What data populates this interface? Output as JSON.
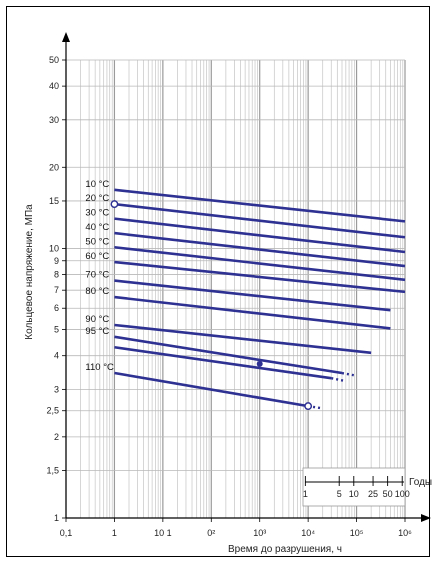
{
  "chart_data": {
    "type": "line",
    "xlabel": "Время до разрушения, ч",
    "ylabel": "Кольцевое напряжение, МПа",
    "x_scale": "log",
    "y_scale": "log",
    "xlim": [
      0.1,
      1000000
    ],
    "ylim": [
      1,
      50
    ],
    "x_ticks": [
      {
        "v": 0.1,
        "label": "0,1"
      },
      {
        "v": 1,
        "label": "1"
      },
      {
        "v": 10,
        "label": "10 1"
      },
      {
        "v": 100,
        "label": "0²"
      },
      {
        "v": 1000,
        "label": "10³"
      },
      {
        "v": 10000,
        "label": "10⁴"
      },
      {
        "v": 100000,
        "label": "10⁵"
      },
      {
        "v": 1000000,
        "label": "10⁶"
      }
    ],
    "y_ticks": [
      {
        "v": 1,
        "label": "1"
      },
      {
        "v": 1.5,
        "label": "1,5"
      },
      {
        "v": 2,
        "label": "2"
      },
      {
        "v": 2.5,
        "label": "2,5"
      },
      {
        "v": 3,
        "label": "3"
      },
      {
        "v": 4,
        "label": "4"
      },
      {
        "v": 5,
        "label": "5"
      },
      {
        "v": 6,
        "label": "6"
      },
      {
        "v": 7,
        "label": "7"
      },
      {
        "v": 8,
        "label": "8"
      },
      {
        "v": 9,
        "label": "9"
      },
      {
        "v": 10,
        "label": "10"
      },
      {
        "v": 15,
        "label": "15"
      },
      {
        "v": 20,
        "label": "20"
      },
      {
        "v": 30,
        "label": "30"
      },
      {
        "v": 40,
        "label": "40"
      },
      {
        "v": 50,
        "label": "50"
      }
    ],
    "grid": true,
    "line_color": "#2e3192",
    "series": [
      {
        "name": "10 °C",
        "x": [
          1,
          1000000
        ],
        "y": [
          16.5,
          12.6
        ]
      },
      {
        "name": "20 °C",
        "x": [
          1,
          1000000
        ],
        "y": [
          14.6,
          11.0
        ],
        "open_point": [
          1,
          14.6
        ]
      },
      {
        "name": "30 °C",
        "x": [
          1,
          1000000
        ],
        "y": [
          12.9,
          9.7
        ]
      },
      {
        "name": "40 °C",
        "x": [
          1,
          1000000
        ],
        "y": [
          11.4,
          8.6
        ]
      },
      {
        "name": "50 °C",
        "x": [
          1,
          1000000
        ],
        "y": [
          10.1,
          7.65
        ]
      },
      {
        "name": "60 °C",
        "x": [
          1,
          1000000
        ],
        "y": [
          8.9,
          6.9
        ]
      },
      {
        "name": "70 °C",
        "x": [
          1,
          500000
        ],
        "y": [
          7.6,
          5.9
        ]
      },
      {
        "name": "80 °C",
        "x": [
          1,
          500000
        ],
        "y": [
          6.6,
          5.05
        ]
      },
      {
        "name": "90 °C",
        "x": [
          1,
          200000
        ],
        "y": [
          5.2,
          4.1
        ]
      },
      {
        "name": "95 °C",
        "x": [
          1,
          50000
        ],
        "y": [
          4.7,
          3.45
        ],
        "dotted_end": [
          100000,
          3.37
        ]
      },
      {
        "name": "",
        "x": [
          1,
          30000
        ],
        "y": [
          4.3,
          3.3
        ],
        "closed_point": [
          1000,
          3.73
        ],
        "dotted_end": [
          60000,
          3.22
        ]
      },
      {
        "name": "110 °C",
        "x": [
          1,
          10000
        ],
        "y": [
          3.45,
          2.6
        ],
        "open_point": [
          10000,
          2.6
        ],
        "dotted_end": [
          20000,
          2.55
        ]
      }
    ],
    "years_scale": {
      "label": "Годы",
      "ticks": [
        {
          "v": 1,
          "label": "1"
        },
        {
          "v": 5,
          "label": "5"
        },
        {
          "v": 10,
          "label": "10"
        },
        {
          "v": 25,
          "label": "25"
        },
        {
          "v": 50,
          "label": "50"
        },
        {
          "v": 100,
          "label": "100"
        }
      ]
    }
  }
}
